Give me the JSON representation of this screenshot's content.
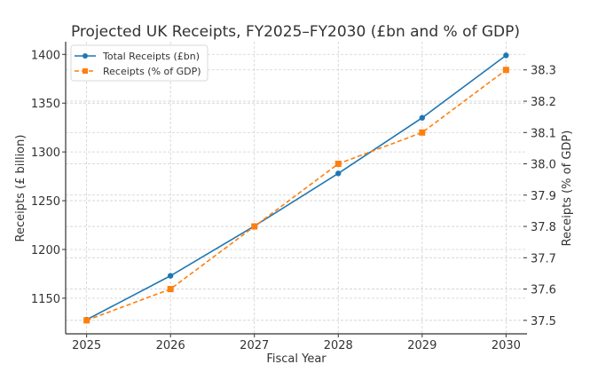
{
  "chart_data": {
    "type": "line",
    "title": "Projected UK Receipts, FY2025–FY2030 (£bn and % of GDP)",
    "xlabel": "Fiscal Year",
    "ylabel_left": "Receipts (£ billion)",
    "ylabel_right": "Receipts (% of GDP)",
    "x": [
      2025,
      2026,
      2027,
      2028,
      2029,
      2030
    ],
    "x_tick_labels": [
      "2025",
      "2026",
      "2027",
      "2028",
      "2029",
      "2030"
    ],
    "xlim": [
      2024.75,
      2030.25
    ],
    "ylim_left": [
      1113.5,
      1413
    ],
    "ylim_right": [
      37.457,
      38.39
    ],
    "y_ticks_left": [
      "1150",
      "1200",
      "1250",
      "1300",
      "1350",
      "1400"
    ],
    "y_tick_values_left": [
      1150,
      1200,
      1250,
      1300,
      1350,
      1400
    ],
    "y_ticks_right": [
      "37.5",
      "37.6",
      "37.7",
      "37.8",
      "37.9",
      "38.0",
      "38.1",
      "38.2",
      "38.3"
    ],
    "y_tick_values_right": [
      37.5,
      37.6,
      37.7,
      37.8,
      37.9,
      38.0,
      38.1,
      38.2,
      38.3
    ],
    "grid": true,
    "legend_position": "top-left",
    "series": [
      {
        "name": "Total Receipts (£bn)",
        "axis": "left",
        "color": "#1f77b4",
        "line_style": "solid",
        "marker": "circle",
        "values": [
          1128,
          1173,
          1224,
          1278,
          1335,
          1399
        ]
      },
      {
        "name": "Receipts (% of GDP)",
        "axis": "right",
        "color": "#ff7f0e",
        "line_style": "dashed",
        "marker": "square",
        "values": [
          37.5,
          37.6,
          37.8,
          38.0,
          38.1,
          38.3
        ]
      }
    ]
  }
}
